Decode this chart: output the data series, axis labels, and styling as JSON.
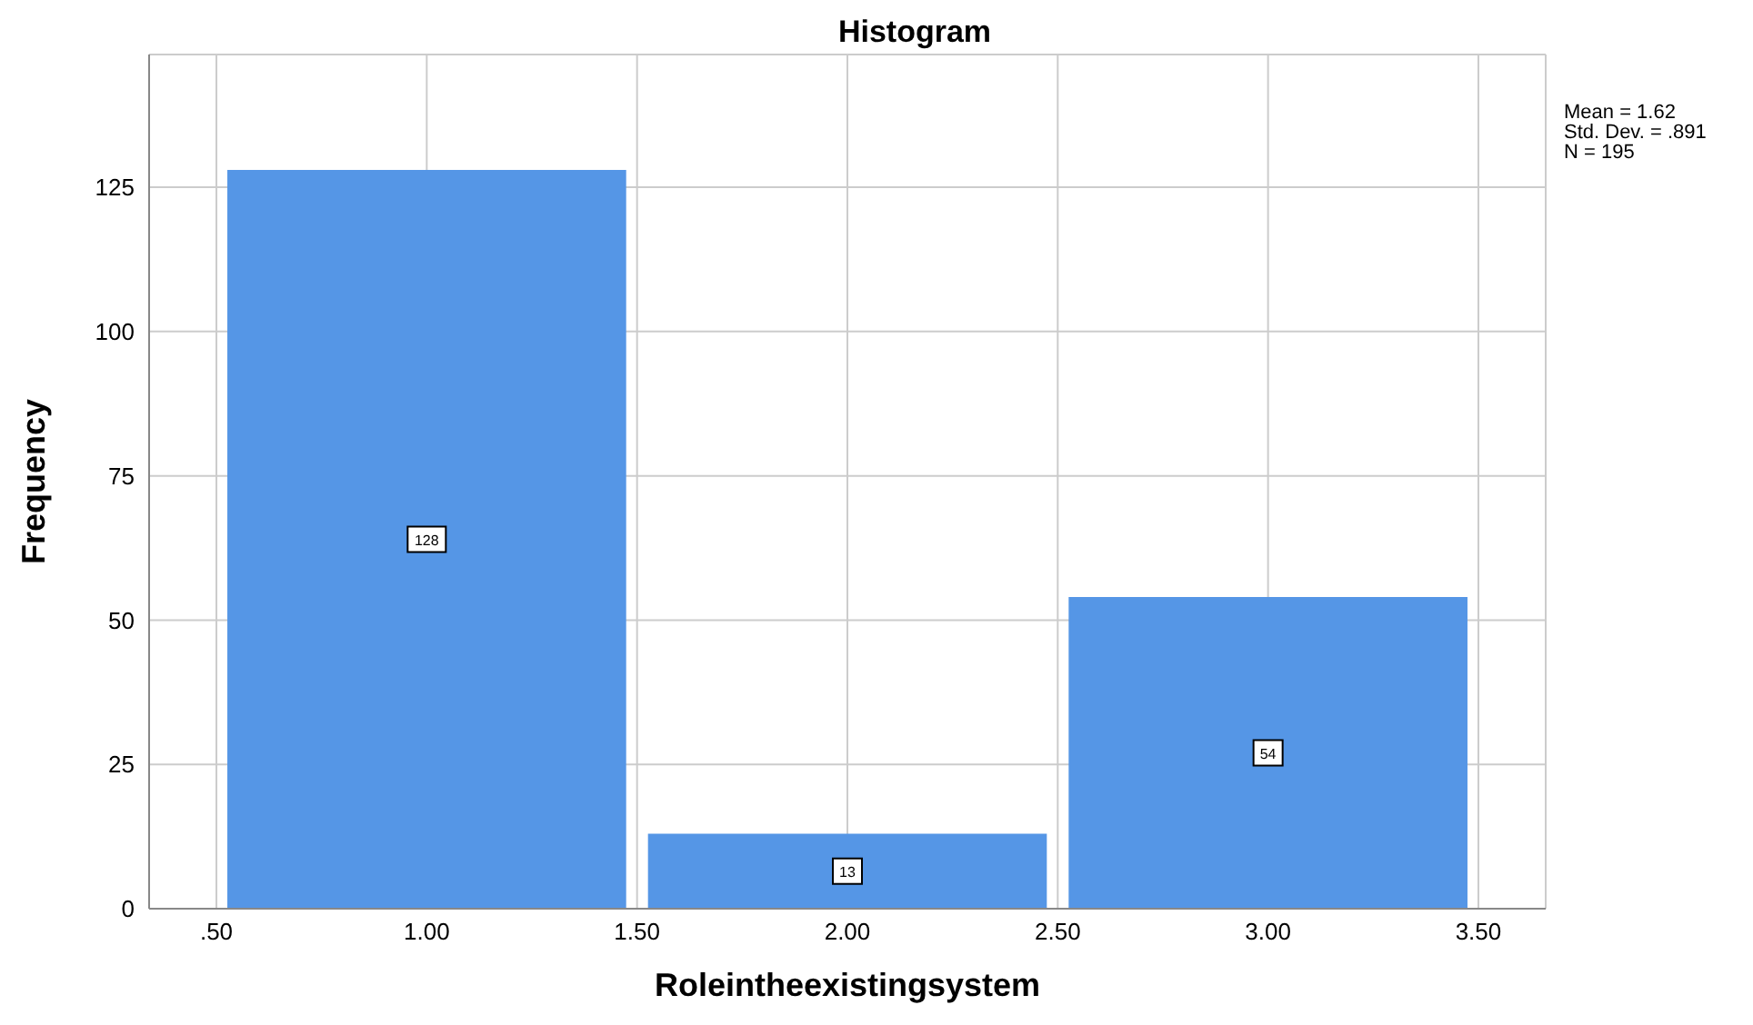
{
  "chart_data": {
    "type": "histogram",
    "title": "Histogram",
    "xlabel": "Roleintheexistingsystem",
    "ylabel": "Frequency",
    "bins": [
      0.5,
      1.5,
      2.5,
      3.5
    ],
    "values": [
      128,
      13,
      54
    ],
    "color": "#5596e6",
    "xlim": [
      0.34,
      3.66
    ],
    "xticks": [
      {
        "value": 0.5,
        "label": ".50"
      },
      {
        "value": 1,
        "label": "1.00"
      },
      {
        "value": 1.5,
        "label": "1.50"
      },
      {
        "value": 2,
        "label": "2.00"
      },
      {
        "value": 2.5,
        "label": "2.50"
      },
      {
        "value": 3,
        "label": "3.00"
      },
      {
        "value": 3.5,
        "label": "3.50"
      }
    ],
    "ylim": [
      0,
      148
    ],
    "yticks": [
      0,
      25,
      50,
      75,
      100,
      125
    ],
    "grid": true,
    "data_labels": true,
    "annotations": [
      "Mean = 1.62",
      "Std. Dev. = .891",
      "N = 195"
    ]
  }
}
